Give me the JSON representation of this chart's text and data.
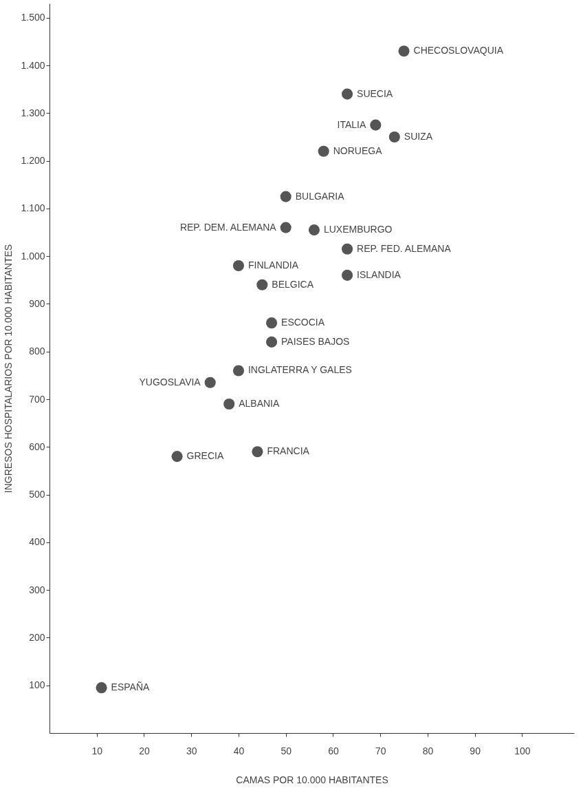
{
  "chart_data": {
    "type": "scatter",
    "xlabel": "CAMAS POR 10.000 HABITANTES",
    "ylabel": "INGRESOS HOSPITALARIOS POR 10.000 HABITANTES",
    "x": [
      75,
      63,
      69,
      73,
      58,
      50,
      50,
      56,
      63,
      40,
      63,
      45,
      47,
      47,
      40,
      34,
      38,
      44,
      27,
      11
    ],
    "values": [
      1430,
      1340,
      1275,
      1250,
      1220,
      1125,
      1060,
      1055,
      1015,
      980,
      960,
      940,
      860,
      820,
      760,
      735,
      690,
      590,
      580,
      95
    ],
    "color": "#555555",
    "marker": "circle",
    "grid": false,
    "xlim": [
      0,
      111
    ],
    "xticks": [
      10,
      20,
      30,
      40,
      50,
      60,
      70,
      80,
      90,
      100
    ],
    "ylim": [
      0,
      1530
    ],
    "yticks": [
      {
        "value": 100,
        "label": "100"
      },
      {
        "value": 200,
        "label": "200"
      },
      {
        "value": 300,
        "label": "300"
      },
      {
        "value": 400,
        "label": "400"
      },
      {
        "value": 500,
        "label": "500"
      },
      {
        "value": 600,
        "label": "600"
      },
      {
        "value": 700,
        "label": "700"
      },
      {
        "value": 800,
        "label": "800"
      },
      {
        "value": 900,
        "label": "900"
      },
      {
        "value": 1000,
        "label": "1.000"
      },
      {
        "value": 1100,
        "label": "1.100"
      },
      {
        "value": 1200,
        "label": "1.200"
      },
      {
        "value": 1300,
        "label": "1.300"
      },
      {
        "value": 1400,
        "label": "1.400"
      },
      {
        "value": 1500,
        "label": "1.500"
      }
    ],
    "annotations": [
      {
        "text": "CHECOSLOVAQUIA",
        "x": 75,
        "y": 1430
      },
      {
        "text": "SUECIA",
        "x": 63,
        "y": 1340
      },
      {
        "text": "ITALIA",
        "x": 69,
        "y": 1275
      },
      {
        "text": "SUIZA",
        "x": 73,
        "y": 1250
      },
      {
        "text": "NORUEGA",
        "x": 58,
        "y": 1220
      },
      {
        "text": "BULGARIA",
        "x": 50,
        "y": 1125
      },
      {
        "text": "REP. DEM. ALEMANA",
        "x": 50,
        "y": 1060
      },
      {
        "text": "LUXEMBURGO",
        "x": 56,
        "y": 1055
      },
      {
        "text": "REP. FED. ALEMANA",
        "x": 63,
        "y": 1015
      },
      {
        "text": "FINLANDIA",
        "x": 40,
        "y": 980
      },
      {
        "text": "ISLANDIA",
        "x": 63,
        "y": 960
      },
      {
        "text": "BELGICA",
        "x": 45,
        "y": 940
      },
      {
        "text": "ESCOCIA",
        "x": 47,
        "y": 860
      },
      {
        "text": "PAISES BAJOS",
        "x": 47,
        "y": 820
      },
      {
        "text": "INGLATERRA Y GALES",
        "x": 40,
        "y": 760
      },
      {
        "text": "YUGOSLAVIA",
        "x": 34,
        "y": 735
      },
      {
        "text": "ALBANIA",
        "x": 38,
        "y": 690
      },
      {
        "text": "FRANCIA",
        "x": 44,
        "y": 590
      },
      {
        "text": "GRECIA",
        "x": 27,
        "y": 580
      },
      {
        "text": "ESPAÑA",
        "x": 11,
        "y": 95
      }
    ]
  }
}
